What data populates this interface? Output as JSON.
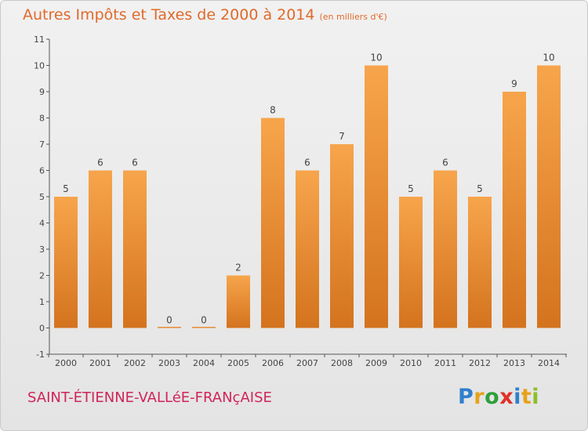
{
  "title": "Autres Impôts et Taxes de 2000 à 2014",
  "subtitle": "(en milliers d'€)",
  "commune": "SAINT-ÉTIENNE-VALLéE-FRANçAISE",
  "logo": {
    "letters": [
      "P",
      "r",
      "o",
      "x",
      "i",
      "t",
      "i"
    ],
    "colors": [
      "#2f7fcf",
      "#e7a21b",
      "#2f9f3a",
      "#e0312a",
      "#2f7fcf",
      "#e7a21b",
      "#8bbf2a"
    ]
  },
  "colors": {
    "bar_top": "#f7a54c",
    "bar_bottom": "#d4731e",
    "title": "#e06a2a",
    "commune": "#d0245a"
  },
  "chart_data": {
    "type": "bar",
    "categories": [
      "2000",
      "2001",
      "2002",
      "2003",
      "2004",
      "2005",
      "2006",
      "2007",
      "2008",
      "2009",
      "2010",
      "2011",
      "2012",
      "2013",
      "2014"
    ],
    "values": [
      5,
      6,
      6,
      0,
      0,
      2,
      8,
      6,
      7,
      10,
      5,
      6,
      5,
      9,
      10
    ],
    "data_labels": [
      "5",
      "6",
      "6",
      "0",
      "0",
      "2",
      "8",
      "6",
      "7",
      "10",
      "5",
      "6",
      "5",
      "9",
      "10"
    ],
    "yticks": [
      "-1",
      "0",
      "1",
      "2",
      "3",
      "4",
      "5",
      "6",
      "7",
      "8",
      "9",
      "10",
      "11"
    ],
    "ylim": [
      -1,
      11
    ],
    "grid": false,
    "legend": "none"
  }
}
